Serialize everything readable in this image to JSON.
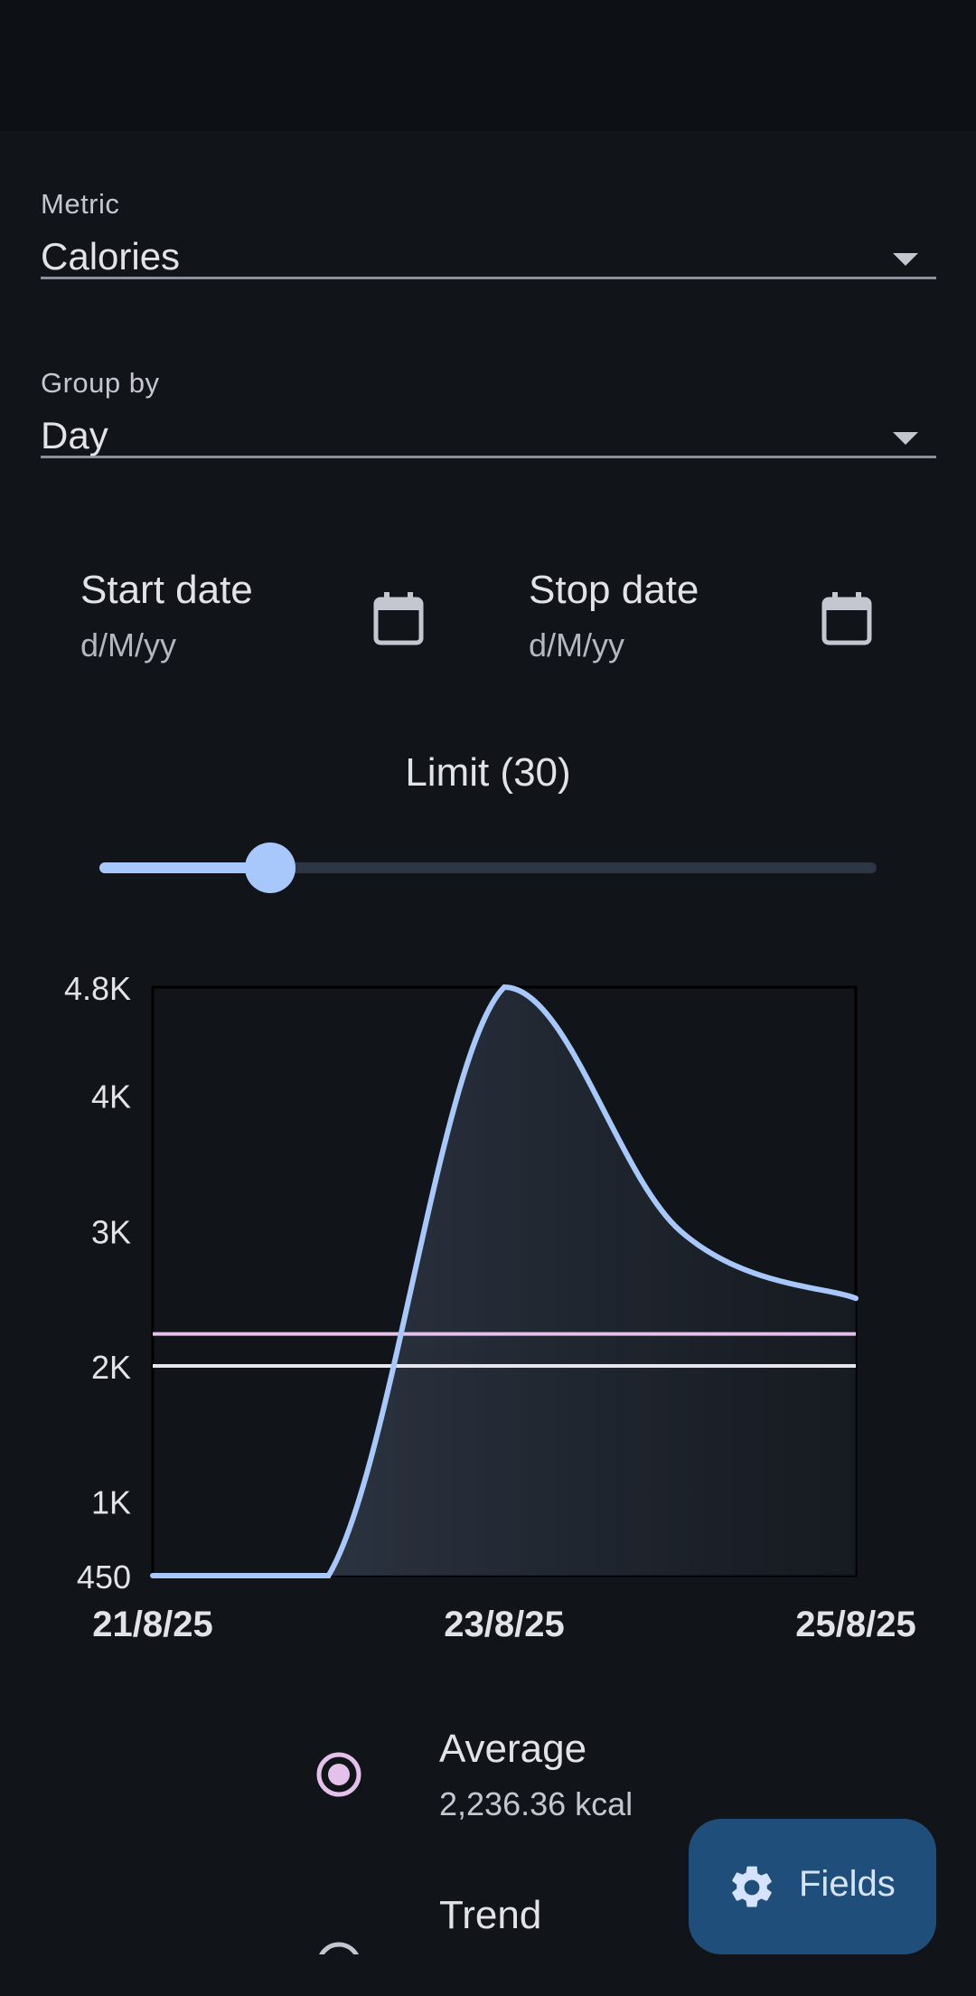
{
  "metric": {
    "label": "Metric",
    "value": "Calories"
  },
  "group_by": {
    "label": "Group by",
    "value": "Day"
  },
  "start_date": {
    "label": "Start date",
    "placeholder": "d/M/yy"
  },
  "stop_date": {
    "label": "Stop date",
    "placeholder": "d/M/yy"
  },
  "limit": {
    "label": "Limit (30)",
    "value": 30,
    "fraction": 0.22
  },
  "chart_data": {
    "type": "area",
    "title": "",
    "xlabel": "",
    "ylabel": "",
    "x_tick_labels": [
      "21/8/25",
      "23/8/25",
      "25/8/25"
    ],
    "y_tick_labels": [
      "4.8K",
      "4K",
      "3K",
      "2K",
      "1K",
      "450"
    ],
    "ylim": [
      450,
      4800
    ],
    "grid": false,
    "series": [
      {
        "color": "#a8c8fb",
        "x": [
          "21/8/25",
          "22/8/25",
          "23/8/25",
          "24/8/25",
          "25/8/25"
        ],
        "values": [
          450,
          450,
          4800,
          3000,
          2500
        ]
      }
    ],
    "reference_lines": [
      {
        "name": "Average",
        "value": 2236.36,
        "color": "#e3c1ea"
      },
      {
        "name": "Trend",
        "value": 2000,
        "color": "#e6e6ee"
      }
    ]
  },
  "legend": [
    {
      "name": "Average",
      "value": "2,236.36 kcal",
      "icon": "radio-selected-icon",
      "color": "#e3c1ea"
    },
    {
      "name": "Trend",
      "value": "",
      "icon": "radio-icon",
      "color": "#c4c6d0"
    }
  ],
  "fab": {
    "label": "Fields",
    "icon": "gear-icon"
  }
}
